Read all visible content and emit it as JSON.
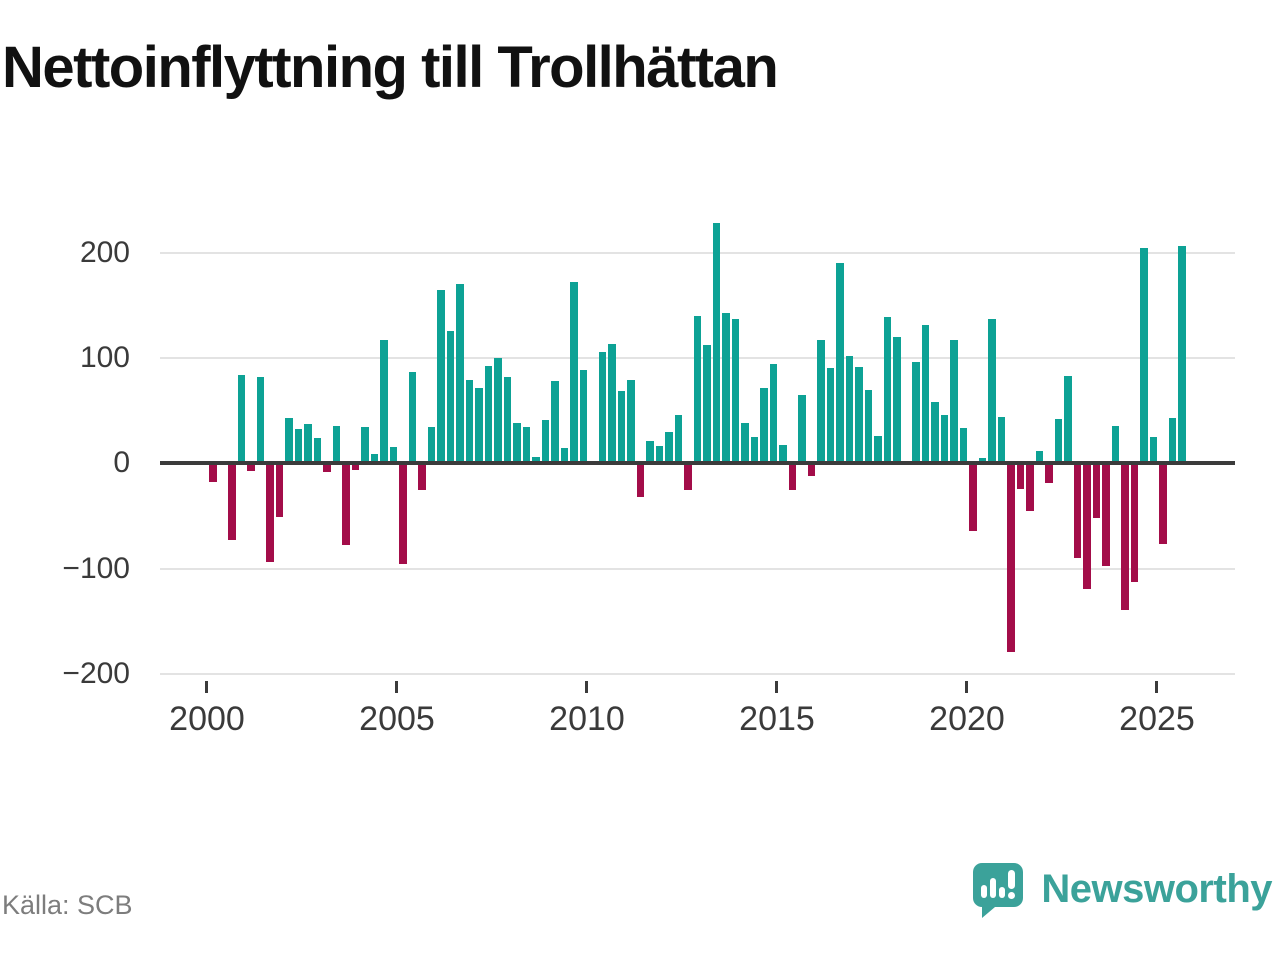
{
  "title": "Nettoinflyttning till Trollhättan",
  "source": "Källa: SCB",
  "brand": {
    "name": "Newsworthy"
  },
  "colors": {
    "positive": "#0DA295",
    "negative": "#A30D49",
    "brand_teal": "#3BA29A",
    "axis": "#3b3b3b",
    "gridline": "#e3e3e3",
    "tick_text": "#3a3a3a",
    "source_text": "#7d7d7d",
    "title_text": "#111111"
  },
  "chart_data": {
    "type": "bar",
    "title": "Nettoinflyttning till Trollhättan",
    "x_start": "2000 Q1",
    "x_end": "2025 Q3",
    "ylim": [
      -200,
      250
    ],
    "grid": "horizontal",
    "ytick_labels": [
      "200",
      "100",
      "0",
      "−100",
      "−200"
    ],
    "ytick_values": [
      200,
      100,
      0,
      -100,
      -200
    ],
    "xtick_labels": [
      "2000",
      "2005",
      "2010",
      "2015",
      "2020",
      "2025"
    ],
    "categories": [
      "2000 Q1",
      "2000 Q2",
      "2000 Q3",
      "2000 Q4",
      "2001 Q1",
      "2001 Q2",
      "2001 Q3",
      "2001 Q4",
      "2002 Q1",
      "2002 Q2",
      "2002 Q3",
      "2002 Q4",
      "2003 Q1",
      "2003 Q2",
      "2003 Q3",
      "2003 Q4",
      "2004 Q1",
      "2004 Q2",
      "2004 Q3",
      "2004 Q4",
      "2005 Q1",
      "2005 Q2",
      "2005 Q3",
      "2005 Q4",
      "2006 Q1",
      "2006 Q2",
      "2006 Q3",
      "2006 Q4",
      "2007 Q1",
      "2007 Q2",
      "2007 Q3",
      "2007 Q4",
      "2008 Q1",
      "2008 Q2",
      "2008 Q3",
      "2008 Q4",
      "2009 Q1",
      "2009 Q2",
      "2009 Q3",
      "2009 Q4",
      "2010 Q1",
      "2010 Q2",
      "2010 Q3",
      "2010 Q4",
      "2011 Q1",
      "2011 Q2",
      "2011 Q3",
      "2011 Q4",
      "2012 Q1",
      "2012 Q2",
      "2012 Q3",
      "2012 Q4",
      "2013 Q1",
      "2013 Q2",
      "2013 Q3",
      "2013 Q4",
      "2014 Q1",
      "2014 Q2",
      "2014 Q3",
      "2014 Q4",
      "2015 Q1",
      "2015 Q2",
      "2015 Q3",
      "2015 Q4",
      "2016 Q1",
      "2016 Q2",
      "2016 Q3",
      "2016 Q4",
      "2017 Q1",
      "2017 Q2",
      "2017 Q3",
      "2017 Q4",
      "2018 Q1",
      "2018 Q2",
      "2018 Q3",
      "2018 Q4",
      "2019 Q1",
      "2019 Q2",
      "2019 Q3",
      "2019 Q4",
      "2020 Q1",
      "2020 Q2",
      "2020 Q3",
      "2020 Q4",
      "2021 Q1",
      "2021 Q2",
      "2021 Q3",
      "2021 Q4",
      "2022 Q1",
      "2022 Q2",
      "2022 Q3",
      "2022 Q4",
      "2023 Q1",
      "2023 Q2",
      "2023 Q3",
      "2023 Q4",
      "2024 Q1",
      "2024 Q2",
      "2024 Q3",
      "2024 Q4",
      "2025 Q1",
      "2025 Q2",
      "2025 Q3"
    ],
    "values": [
      -16,
      0,
      -71,
      84,
      -6,
      82,
      -92,
      -49,
      43,
      32,
      37,
      24,
      -7,
      35,
      -76,
      -5,
      34,
      9,
      117,
      15,
      -94,
      86,
      -24,
      34,
      164,
      125,
      170,
      79,
      71,
      92,
      100,
      82,
      38,
      34,
      6,
      41,
      78,
      14,
      172,
      88,
      0,
      105,
      113,
      68,
      79,
      -30,
      21,
      16,
      29,
      46,
      -24,
      140,
      112,
      228,
      142,
      137,
      38,
      25,
      71,
      94,
      17,
      -24,
      65,
      -10,
      117,
      90,
      190,
      102,
      91,
      69,
      26,
      139,
      120,
      0,
      96,
      131,
      58,
      46,
      117,
      33,
      -63,
      5,
      137,
      44,
      -178,
      -23,
      -44,
      11,
      -17,
      42,
      83,
      -88,
      -118,
      -50,
      -96,
      35,
      -138,
      -111,
      204,
      25,
      -75,
      43,
      206
    ]
  }
}
